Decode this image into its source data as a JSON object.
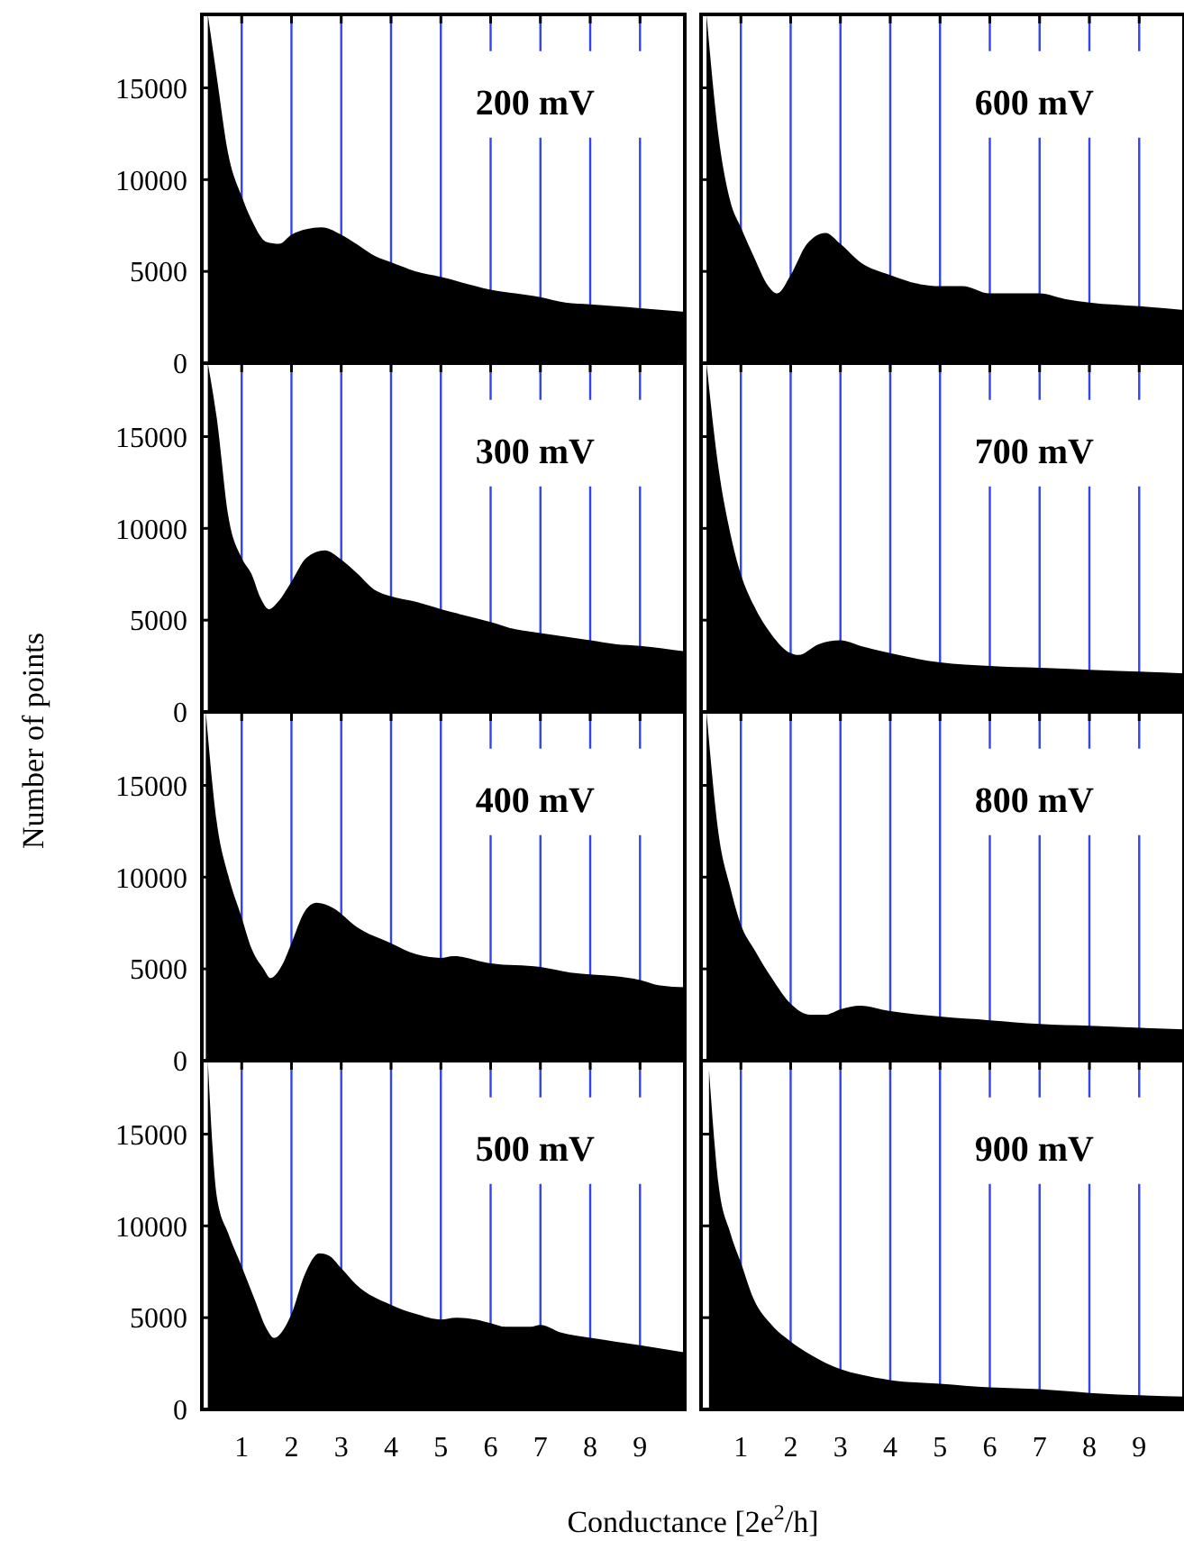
{
  "chart_data": [
    {
      "type": "area",
      "title": "200 mV",
      "xlim": [
        0.2,
        9.9
      ],
      "ylim": [
        0,
        19000
      ],
      "xticks": [
        1,
        2,
        3,
        4,
        5,
        6,
        7,
        8,
        9
      ],
      "yticks": [
        0,
        5000,
        10000,
        15000
      ],
      "grid": "x",
      "tick_labels": "y",
      "series": [
        {
          "color": "#000000",
          "x": [
            0.32,
            0.5,
            0.73,
            1,
            1.2,
            1.5,
            1.75,
            2,
            2.3,
            2.6,
            3,
            3.3,
            3.7,
            4,
            4.5,
            5,
            5.7,
            6,
            6.5,
            7,
            7.5,
            8,
            8.5,
            9,
            9.9
          ],
          "values": [
            19000,
            15600,
            11400,
            9100,
            7800,
            6600,
            6500,
            7000,
            7300,
            7400,
            7000,
            6500,
            5800,
            5500,
            5000,
            4700,
            4200,
            4000,
            3800,
            3600,
            3300,
            3200,
            3100,
            3000,
            2800
          ]
        }
      ]
    },
    {
      "type": "area",
      "title": "600 mV",
      "xlim": [
        0.2,
        9.9
      ],
      "ylim": [
        0,
        19000
      ],
      "xticks": [
        1,
        2,
        3,
        4,
        5,
        6,
        7,
        8,
        9
      ],
      "yticks": [
        0,
        5000,
        10000,
        15000
      ],
      "grid": "x",
      "tick_labels": false,
      "series": [
        {
          "color": "#000000",
          "x": [
            0.31,
            0.55,
            0.79,
            1,
            1.26,
            1.55,
            1.73,
            2,
            2.33,
            2.7,
            3,
            3.4,
            4,
            4.6,
            5,
            5.45,
            6,
            7,
            7.5,
            8,
            9,
            9.9
          ],
          "values": [
            19000,
            12400,
            8800,
            7400,
            5800,
            4200,
            3800,
            4800,
            6500,
            7100,
            6500,
            5500,
            4800,
            4300,
            4200,
            4200,
            3800,
            3800,
            3500,
            3300,
            3100,
            2900
          ]
        }
      ]
    },
    {
      "type": "area",
      "title": "300 mV",
      "xlim": [
        0.2,
        9.9
      ],
      "ylim": [
        0,
        19000
      ],
      "xticks": [
        1,
        2,
        3,
        4,
        5,
        6,
        7,
        8,
        9
      ],
      "yticks": [
        0,
        5000,
        10000,
        15000
      ],
      "grid": "x",
      "tick_labels": "y",
      "series": [
        {
          "color": "#000000",
          "x": [
            0.32,
            0.5,
            0.73,
            1,
            1.2,
            1.38,
            1.55,
            1.73,
            2,
            2.3,
            2.67,
            3,
            3.3,
            3.7,
            4,
            4.5,
            5,
            6,
            6.5,
            7,
            8,
            8.5,
            9,
            9.9
          ],
          "values": [
            19000,
            16000,
            10700,
            8400,
            7500,
            6200,
            5600,
            6000,
            7100,
            8400,
            8800,
            8300,
            7600,
            6600,
            6300,
            6000,
            5600,
            4900,
            4500,
            4300,
            3900,
            3700,
            3600,
            3300
          ]
        }
      ]
    },
    {
      "type": "area",
      "title": "700 mV",
      "xlim": [
        0.2,
        9.9
      ],
      "ylim": [
        0,
        19000
      ],
      "xticks": [
        1,
        2,
        3,
        4,
        5,
        6,
        7,
        8,
        9
      ],
      "yticks": [
        0,
        5000,
        10000,
        15000
      ],
      "grid": "x",
      "tick_labels": false,
      "series": [
        {
          "color": "#000000",
          "x": [
            0.31,
            0.55,
            0.79,
            1,
            1.26,
            1.62,
            2,
            2.15,
            2.57,
            3,
            3.4,
            4,
            5,
            6,
            7,
            8,
            9.9
          ],
          "values": [
            19000,
            13300,
            9700,
            7500,
            5800,
            4200,
            3200,
            3100,
            3700,
            3900,
            3600,
            3200,
            2700,
            2500,
            2400,
            2300,
            2100
          ]
        }
      ]
    },
    {
      "type": "area",
      "title": "400 mV",
      "ylabel": "Number of points",
      "xlim": [
        0.2,
        9.9
      ],
      "ylim": [
        0,
        19000
      ],
      "xticks": [
        1,
        2,
        3,
        4,
        5,
        6,
        7,
        8,
        9
      ],
      "yticks": [
        0,
        5000,
        10000,
        15000
      ],
      "grid": "x",
      "tick_labels": "y",
      "series": [
        {
          "color": "#000000",
          "x": [
            0.28,
            0.5,
            0.73,
            1,
            1.2,
            1.44,
            1.58,
            1.79,
            2,
            2.26,
            2.5,
            2.85,
            3.3,
            4,
            4.5,
            5,
            5.25,
            6,
            7,
            7.6,
            8.5,
            9,
            9.4,
            9.9
          ],
          "values": [
            19000,
            13000,
            10100,
            7800,
            6100,
            5000,
            4500,
            5100,
            6400,
            8100,
            8600,
            8300,
            7300,
            6400,
            5800,
            5600,
            5700,
            5300,
            5100,
            4800,
            4600,
            4400,
            4100,
            4000
          ]
        }
      ]
    },
    {
      "type": "area",
      "title": "800 mV",
      "xlim": [
        0.2,
        9.9
      ],
      "ylim": [
        0,
        19000
      ],
      "xticks": [
        1,
        2,
        3,
        4,
        5,
        6,
        7,
        8,
        9
      ],
      "yticks": [
        0,
        5000,
        10000,
        15000
      ],
      "grid": "x",
      "tick_labels": false,
      "series": [
        {
          "color": "#000000",
          "x": [
            0.31,
            0.55,
            0.79,
            1,
            1.26,
            1.62,
            2,
            2.39,
            2.69,
            3,
            3.4,
            4,
            5,
            6,
            7,
            8,
            9.9
          ],
          "values": [
            19000,
            12400,
            9400,
            7400,
            6100,
            4500,
            3100,
            2500,
            2500,
            2800,
            3000,
            2700,
            2400,
            2200,
            2000,
            1900,
            1700
          ]
        }
      ]
    },
    {
      "type": "area",
      "title": "500 mV",
      "xlabel": "Conductance [2e$^{2}$/h]",
      "xlim": [
        0.2,
        9.9
      ],
      "ylim": [
        0,
        19000
      ],
      "xticks": [
        1,
        2,
        3,
        4,
        5,
        6,
        7,
        8,
        9
      ],
      "yticks": [
        0,
        5000,
        10000,
        15000
      ],
      "grid": "x",
      "series": [
        {
          "color": "#000000",
          "x": [
            0.32,
            0.5,
            0.73,
            1,
            1.26,
            1.5,
            1.65,
            1.85,
            2,
            2.26,
            2.56,
            2.74,
            3,
            3.3,
            4,
            4.5,
            5,
            5.3,
            5.7,
            6,
            6.3,
            6.8,
            7,
            7.4,
            8,
            8.5,
            9,
            9.9
          ],
          "values": [
            19000,
            11600,
            9600,
            7800,
            6000,
            4400,
            3900,
            4400,
            5200,
            7300,
            8500,
            8400,
            7700,
            6800,
            5700,
            5200,
            4900,
            5000,
            4900,
            4700,
            4500,
            4500,
            4600,
            4200,
            3900,
            3700,
            3500,
            3100
          ]
        }
      ]
    },
    {
      "type": "area",
      "title": "900 mV",
      "xlim": [
        0.2,
        9.9
      ],
      "ylim": [
        0,
        19000
      ],
      "xticks": [
        1,
        2,
        3,
        4,
        5,
        6,
        7,
        8,
        9
      ],
      "yticks": [
        0,
        5000,
        10000,
        15000
      ],
      "grid": "x",
      "tick_labels": "x",
      "series": [
        {
          "color": "#000000",
          "x": [
            0.36,
            0.55,
            0.79,
            1,
            1.26,
            1.62,
            2,
            2.39,
            3,
            3.4,
            4,
            5,
            6,
            7,
            8,
            9.9
          ],
          "values": [
            18500,
            12300,
            9600,
            8000,
            6000,
            4600,
            3700,
            3000,
            2200,
            1900,
            1600,
            1400,
            1200,
            1100,
            900,
            700
          ]
        }
      ]
    }
  ]
}
